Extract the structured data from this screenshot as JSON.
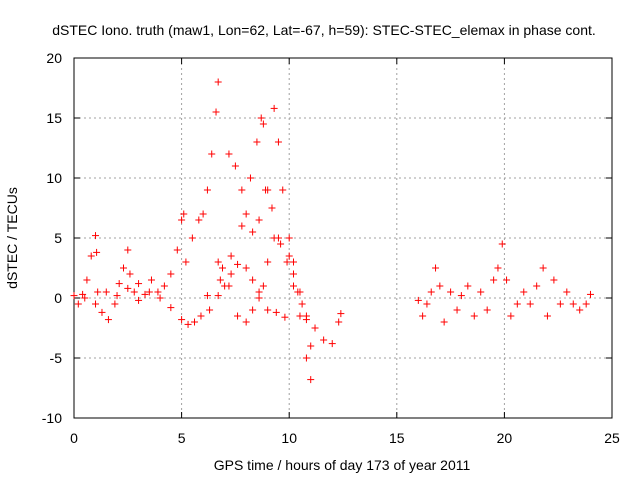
{
  "chart_data": {
    "type": "scatter",
    "title": "dSTEC Iono. truth (maw1, Lon=62, Lat=-67, h=59): STEC-STEC_elemax in phase cont.",
    "xlabel": "GPS time / hours of day 173 of year 2011",
    "ylabel": "dSTEC  / TECUs",
    "xlim": [
      0,
      25
    ],
    "ylim": [
      -10,
      20
    ],
    "x_ticks": [
      0,
      5,
      10,
      15,
      20,
      25
    ],
    "y_ticks": [
      -10,
      -5,
      0,
      5,
      10,
      15,
      20
    ],
    "x_tick_labels": [
      "0",
      "5",
      "10",
      "15",
      "20",
      "25"
    ],
    "y_tick_labels": [
      "-10",
      "-5",
      "0",
      "5",
      "10",
      "15",
      "20"
    ],
    "grid": true,
    "marker": "+",
    "color": "#ff0000",
    "series": [
      {
        "points": [
          [
            0.0,
            0.2
          ],
          [
            0.2,
            -0.5
          ],
          [
            0.4,
            0.3
          ],
          [
            0.6,
            1.5
          ],
          [
            0.8,
            3.5
          ],
          [
            1.0,
            5.2
          ],
          [
            1.05,
            3.8
          ],
          [
            1.1,
            0.5
          ],
          [
            1.3,
            -1.2
          ],
          [
            1.6,
            -1.8
          ],
          [
            1.9,
            -0.5
          ],
          [
            2.1,
            1.2
          ],
          [
            2.3,
            2.5
          ],
          [
            2.5,
            4.0
          ],
          [
            2.6,
            2.0
          ],
          [
            2.8,
            0.5
          ],
          [
            3.0,
            1.2
          ],
          [
            3.3,
            0.3
          ],
          [
            3.6,
            1.5
          ],
          [
            3.9,
            0.5
          ],
          [
            4.2,
            1.0
          ],
          [
            4.5,
            2.0
          ],
          [
            4.8,
            4.0
          ],
          [
            5.0,
            6.5
          ],
          [
            5.1,
            7.0
          ],
          [
            5.2,
            3.0
          ],
          [
            5.5,
            5.0
          ],
          [
            5.8,
            6.5
          ],
          [
            6.0,
            7.0
          ],
          [
            6.2,
            9.0
          ],
          [
            6.4,
            12.0
          ],
          [
            6.6,
            15.5
          ],
          [
            6.7,
            18.0
          ]
        ]
      },
      {
        "points": [
          [
            6.7,
            3.0
          ],
          [
            6.9,
            2.5
          ],
          [
            7.2,
            1.0
          ],
          [
            7.6,
            -1.5
          ],
          [
            8.0,
            -2.0
          ],
          [
            8.3,
            -1.0
          ],
          [
            8.6,
            0.5
          ],
          [
            8.8,
            1.0
          ],
          [
            9.0,
            3.0
          ],
          [
            9.3,
            5.0
          ],
          [
            9.6,
            4.5
          ],
          [
            10.0,
            3.5
          ],
          [
            10.2,
            2.0
          ],
          [
            10.4,
            0.5
          ],
          [
            10.6,
            -0.5
          ],
          [
            10.8,
            -1.8
          ],
          [
            11.0,
            -4.0
          ]
        ]
      },
      {
        "points": [
          [
            7.2,
            12.0
          ],
          [
            7.5,
            11.0
          ],
          [
            7.8,
            9.0
          ],
          [
            8.0,
            7.0
          ],
          [
            8.3,
            5.5
          ],
          [
            8.6,
            6.5
          ],
          [
            8.9,
            9.0
          ],
          [
            9.2,
            7.5
          ],
          [
            9.5,
            5.0
          ],
          [
            9.9,
            3.0
          ],
          [
            10.2,
            1.0
          ],
          [
            10.5,
            -1.5
          ],
          [
            10.8,
            -5.0
          ],
          [
            11.0,
            -6.8
          ]
        ]
      },
      {
        "points": [
          [
            6.2,
            0.2
          ],
          [
            6.8,
            1.5
          ],
          [
            7.3,
            3.5
          ],
          [
            7.8,
            6.0
          ],
          [
            8.2,
            10.0
          ],
          [
            8.5,
            13.0
          ],
          [
            8.7,
            15.0
          ],
          [
            8.8,
            14.5
          ],
          [
            9.0,
            9.0
          ],
          [
            9.3,
            15.8
          ],
          [
            9.5,
            13.0
          ],
          [
            9.7,
            9.0
          ],
          [
            10.0,
            5.0
          ],
          [
            10.2,
            3.0
          ],
          [
            10.5,
            0.5
          ],
          [
            10.8,
            -1.5
          ],
          [
            11.2,
            -2.5
          ],
          [
            11.6,
            -3.5
          ],
          [
            12.0,
            -3.8
          ],
          [
            12.3,
            -2.0
          ],
          [
            12.4,
            -1.3
          ]
        ]
      },
      {
        "points": [
          [
            0.5,
            0.0
          ],
          [
            1.0,
            -0.5
          ],
          [
            1.5,
            0.5
          ],
          [
            2.0,
            0.2
          ],
          [
            2.5,
            0.8
          ],
          [
            3.0,
            -0.2
          ],
          [
            3.5,
            0.5
          ],
          [
            4.0,
            0.0
          ],
          [
            4.5,
            -0.8
          ],
          [
            5.0,
            -1.8
          ],
          [
            5.3,
            -2.2
          ],
          [
            5.6,
            -2.0
          ],
          [
            5.9,
            -1.5
          ],
          [
            6.3,
            -1.0
          ],
          [
            6.7,
            0.2
          ],
          [
            7.0,
            1.0
          ],
          [
            7.3,
            2.0
          ],
          [
            7.6,
            2.8
          ],
          [
            8.0,
            2.5
          ],
          [
            8.3,
            1.5
          ],
          [
            8.6,
            0.0
          ],
          [
            9.0,
            -1.0
          ],
          [
            9.4,
            -1.2
          ],
          [
            9.8,
            -1.6
          ]
        ]
      },
      {
        "points": [
          [
            16.0,
            -0.2
          ],
          [
            16.2,
            -1.5
          ],
          [
            16.4,
            -0.5
          ],
          [
            16.6,
            0.5
          ],
          [
            16.8,
            2.5
          ],
          [
            17.0,
            1.0
          ],
          [
            17.2,
            -2.0
          ],
          [
            17.5,
            0.5
          ],
          [
            17.8,
            -1.0
          ],
          [
            18.0,
            0.2
          ],
          [
            18.3,
            1.0
          ],
          [
            18.6,
            -1.5
          ],
          [
            18.9,
            0.5
          ],
          [
            19.2,
            -1.0
          ],
          [
            19.5,
            1.5
          ],
          [
            19.7,
            2.5
          ],
          [
            19.9,
            4.5
          ],
          [
            20.1,
            1.5
          ],
          [
            20.3,
            -1.5
          ],
          [
            20.6,
            -0.5
          ],
          [
            20.9,
            0.5
          ],
          [
            21.2,
            -0.5
          ],
          [
            21.5,
            1.0
          ],
          [
            21.8,
            2.5
          ],
          [
            22.0,
            -1.5
          ],
          [
            22.3,
            1.5
          ],
          [
            22.6,
            -0.5
          ],
          [
            22.9,
            0.5
          ],
          [
            23.2,
            -0.5
          ],
          [
            23.5,
            -1.0
          ],
          [
            23.8,
            -0.5
          ],
          [
            24.0,
            0.3
          ]
        ]
      }
    ]
  }
}
